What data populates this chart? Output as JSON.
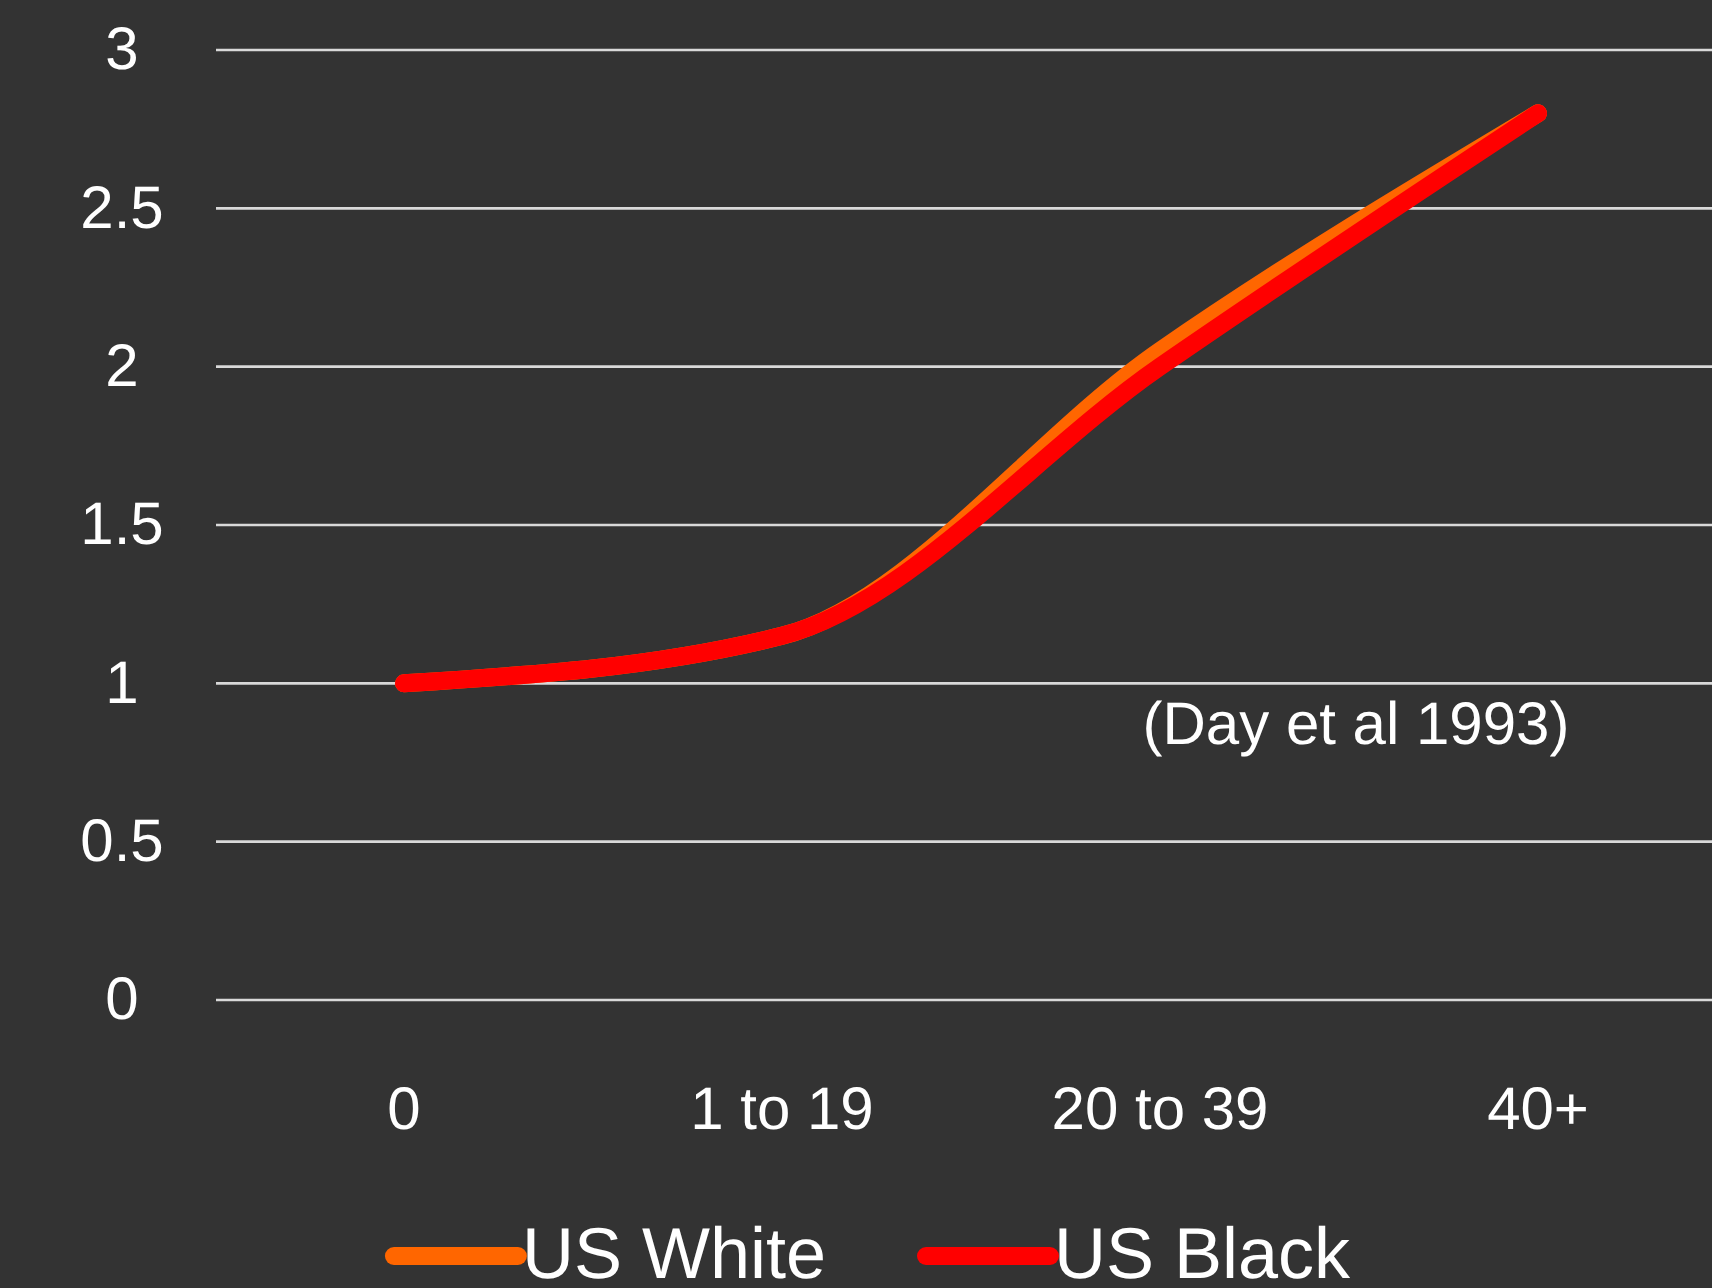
{
  "chart_data": {
    "type": "line",
    "categories": [
      "0",
      "1 to 19",
      "20 to 39",
      "40+"
    ],
    "series": [
      {
        "name": "US White",
        "color": "#ff6600",
        "values": [
          1,
          1.15,
          2.05,
          2.8
        ]
      },
      {
        "name": "US Black",
        "color": "#ff0000",
        "values": [
          1,
          1.15,
          2.0,
          2.8
        ]
      }
    ],
    "ylim": [
      0,
      3
    ],
    "yticks": [
      0,
      0.5,
      1,
      1.5,
      2,
      2.5,
      3
    ],
    "grid": "y",
    "legend": "bottom",
    "marker": "none",
    "line_style": "solid",
    "annotations": [
      "(Day et al 1993)"
    ]
  }
}
